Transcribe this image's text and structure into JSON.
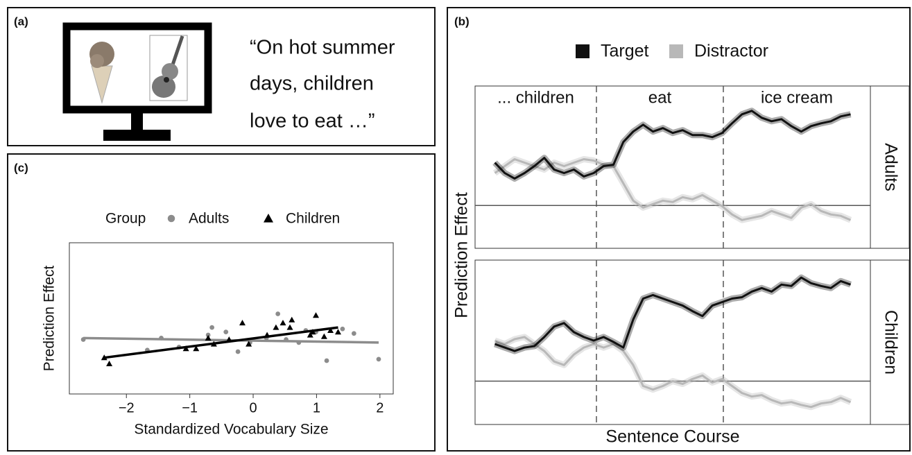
{
  "stimulus": {
    "panel_label": "(a)",
    "sentence": [
      "“On hot summer",
      "days, children",
      "love to eat …”"
    ]
  },
  "chart_data": [
    {
      "type": "line",
      "panel_label": "(b)",
      "xlabel": "Sentence Course",
      "ylabel": "Prediction Effect",
      "legend": "top",
      "series": [
        {
          "name": "Target",
          "color": "#111111"
        },
        {
          "name": "Distractor",
          "color": "#b8b8b8"
        }
      ],
      "x": [
        5,
        7.5,
        10,
        12.5,
        15,
        17.5,
        20,
        22.5,
        25,
        27.5,
        30,
        32.5,
        35,
        37.5,
        40,
        42.5,
        45,
        47.5,
        50,
        52.5,
        55,
        57.5,
        60,
        62.5,
        65,
        67.5,
        70,
        72.5,
        75,
        77.5,
        80,
        82.5,
        85,
        87.5,
        90,
        92.5,
        95
      ],
      "xlim": [
        0,
        100
      ],
      "ylim": [
        -0.62,
        1.73
      ],
      "hline": 0,
      "vlines": [
        30.7,
        62.8
      ],
      "region_labels": [
        "... children",
        "eat",
        "ice cream"
      ],
      "facets": [
        {
          "name": "Adults",
          "series": [
            {
              "values": [
                0.62,
                0.47,
                0.39,
                0.47,
                0.57,
                0.69,
                0.52,
                0.47,
                0.52,
                0.42,
                0.47,
                0.57,
                0.59,
                0.92,
                1.07,
                1.17,
                1.07,
                1.12,
                1.05,
                1.09,
                1.02,
                1.02,
                0.99,
                1.05,
                1.19,
                1.32,
                1.37,
                1.27,
                1.22,
                1.25,
                1.15,
                1.07,
                1.15,
                1.19,
                1.22,
                1.29,
                1.32
              ]
            },
            {
              "values": [
                0.47,
                0.57,
                0.67,
                0.62,
                0.57,
                0.52,
                0.62,
                0.57,
                0.62,
                0.67,
                0.65,
                0.59,
                0.57,
                0.32,
                0.07,
                -0.03,
                0.02,
                0.07,
                0.05,
                0.12,
                0.09,
                0.15,
                0.07,
                -0.01,
                -0.13,
                -0.21,
                -0.18,
                -0.15,
                -0.08,
                -0.13,
                -0.18,
                -0.03,
                0.02,
                -0.08,
                -0.13,
                -0.15,
                -0.21
              ]
            }
          ]
        },
        {
          "name": "Children",
          "series": [
            {
              "values": [
                0.53,
                0.48,
                0.43,
                0.48,
                0.5,
                0.63,
                0.78,
                0.83,
                0.7,
                0.63,
                0.58,
                0.63,
                0.56,
                0.48,
                0.88,
                1.18,
                1.23,
                1.18,
                1.13,
                1.08,
                1.0,
                0.93,
                1.08,
                1.13,
                1.18,
                1.2,
                1.28,
                1.33,
                1.28,
                1.38,
                1.36,
                1.48,
                1.4,
                1.36,
                1.33,
                1.43,
                1.38
              ]
            },
            {
              "values": [
                0.58,
                0.53,
                0.6,
                0.63,
                0.53,
                0.43,
                0.28,
                0.23,
                0.38,
                0.48,
                0.53,
                0.48,
                0.53,
                0.43,
                0.23,
                -0.07,
                -0.12,
                -0.07,
                0,
                -0.04,
                0.03,
                0.08,
                -0.02,
                0.03,
                -0.07,
                -0.17,
                -0.22,
                -0.2,
                -0.27,
                -0.32,
                -0.3,
                -0.34,
                -0.37,
                -0.32,
                -0.3,
                -0.24,
                -0.3
              ]
            }
          ]
        }
      ]
    },
    {
      "type": "scatter",
      "panel_label": "(c)",
      "xlabel": "Standardized Vocabulary Size",
      "ylabel": "Prediction Effect",
      "legend_title": "Group",
      "legend": "top",
      "xlim": [
        -2.9,
        2.21
      ],
      "ylim": [
        0,
        1
      ],
      "xticks": [
        {
          "value": -2,
          "label": "−2"
        },
        {
          "value": -1,
          "label": "−1"
        },
        0,
        1,
        2
      ],
      "series": [
        {
          "name": "Adults",
          "color": "#8c8c8c",
          "marker": "circle",
          "x": [
            -2.68,
            -1.67,
            -1.45,
            -1.17,
            -0.71,
            -0.65,
            -0.43,
            -0.24,
            -0.05,
            0.21,
            0.39,
            0.52,
            0.72,
            0.83,
            0.99,
            1.16,
            1.41,
            1.59,
            1.98
          ],
          "values": [
            0.36,
            0.29,
            0.37,
            0.31,
            0.39,
            0.44,
            0.41,
            0.28,
            0.34,
            0.37,
            0.53,
            0.36,
            0.34,
            0.42,
            0.41,
            0.22,
            0.43,
            0.4,
            0.23
          ],
          "fit": {
            "x": [
              -2.68,
              1.98
            ],
            "values": [
              0.37,
              0.34
            ]
          }
        },
        {
          "name": "Children",
          "color": "#000000",
          "marker": "triangle",
          "x": [
            -2.35,
            -2.27,
            -1.06,
            -0.9,
            -0.71,
            -0.62,
            -0.38,
            -0.17,
            -0.07,
            0.22,
            0.36,
            0.47,
            0.58,
            0.61,
            0.9,
            0.94,
            0.99,
            1.12,
            1.22,
            1.34
          ],
          "values": [
            0.24,
            0.2,
            0.3,
            0.3,
            0.37,
            0.33,
            0.36,
            0.47,
            0.33,
            0.39,
            0.44,
            0.47,
            0.44,
            0.49,
            0.39,
            0.41,
            0.52,
            0.38,
            0.42,
            0.41
          ],
          "fit": {
            "x": [
              -2.35,
              1.34
            ],
            "values": [
              0.24,
              0.44
            ]
          }
        }
      ]
    }
  ]
}
